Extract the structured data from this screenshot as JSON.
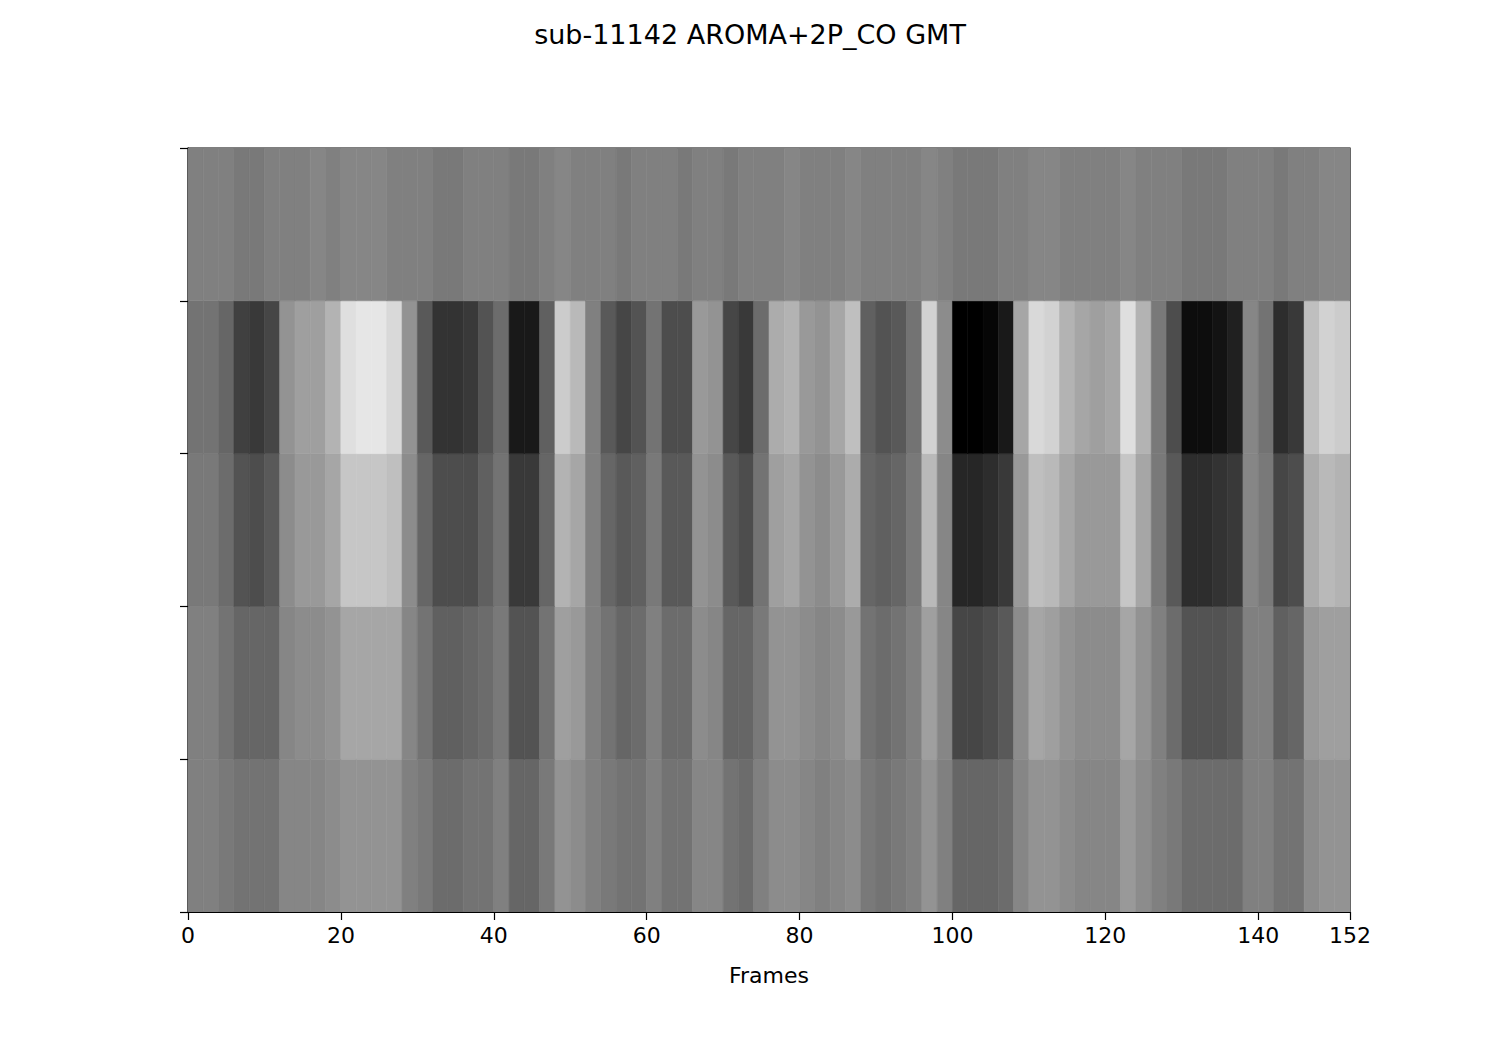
{
  "chart_data": {
    "type": "heatmap",
    "title": "sub-11142 AROMA+2P_CO GMT",
    "xlabel": "Frames",
    "xlim": [
      0,
      152
    ],
    "xticks": [
      0,
      20,
      40,
      60,
      80,
      100,
      120,
      140
    ],
    "ylim": [
      0,
      5
    ],
    "yticks": [
      0,
      1,
      2,
      3,
      4,
      5
    ],
    "tick_labels": "x",
    "grid": false,
    "zlim": [
      -2,
      2
    ],
    "x_edges": [
      0,
      2,
      4,
      6,
      8,
      10,
      12,
      14,
      16,
      18,
      20,
      22,
      24,
      26,
      28,
      30,
      32,
      34,
      36,
      38,
      40,
      42,
      44,
      46,
      48,
      50,
      52,
      54,
      56,
      58,
      60,
      62,
      64,
      66,
      68,
      70,
      72,
      74,
      76,
      78,
      80,
      82,
      84,
      86,
      88,
      90,
      92,
      94,
      96,
      98,
      100,
      102,
      104,
      106,
      108,
      110,
      112,
      114,
      116,
      118,
      120,
      122,
      124,
      126,
      128,
      130,
      132,
      134,
      136,
      138,
      140,
      142,
      144,
      146,
      148,
      150,
      152
    ],
    "y_edges": [
      0,
      1,
      2,
      3,
      4,
      5
    ],
    "z": [
      [
        0.0,
        0.0,
        -0.1,
        -0.2,
        -0.2,
        -0.2,
        0.1,
        0.1,
        0.1,
        0.2,
        0.3,
        0.3,
        0.3,
        0.3,
        0.0,
        -0.1,
        -0.3,
        -0.3,
        -0.2,
        -0.2,
        0.0,
        -0.4,
        -0.4,
        -0.1,
        0.3,
        0.2,
        0.0,
        -0.1,
        -0.2,
        -0.2,
        0.0,
        -0.2,
        -0.2,
        0.1,
        0.1,
        -0.2,
        -0.3,
        0.0,
        0.2,
        0.2,
        0.1,
        0.0,
        0.1,
        0.2,
        -0.1,
        -0.2,
        -0.1,
        0.0,
        0.3,
        0.0,
        -0.4,
        -0.4,
        -0.4,
        -0.3,
        0.1,
        0.3,
        0.3,
        0.2,
        0.1,
        0.1,
        0.1,
        0.4,
        0.2,
        0.0,
        -0.1,
        -0.3,
        -0.3,
        -0.3,
        -0.3,
        0.0,
        0.0,
        -0.2,
        -0.2,
        0.2,
        0.3,
        0.3
      ],
      [
        0.0,
        0.0,
        -0.2,
        -0.4,
        -0.4,
        -0.4,
        0.1,
        0.2,
        0.2,
        0.3,
        0.6,
        0.6,
        0.6,
        0.6,
        0.1,
        -0.2,
        -0.5,
        -0.5,
        -0.4,
        -0.3,
        -0.1,
        -0.7,
        -0.7,
        -0.2,
        0.5,
        0.4,
        0.0,
        -0.2,
        -0.4,
        -0.3,
        0.0,
        -0.3,
        -0.3,
        0.2,
        0.1,
        -0.4,
        -0.4,
        -0.1,
        0.3,
        0.3,
        0.2,
        0.1,
        0.2,
        0.4,
        -0.2,
        -0.3,
        -0.2,
        0.0,
        0.5,
        0.1,
        -0.9,
        -0.9,
        -0.8,
        -0.6,
        0.2,
        0.6,
        0.5,
        0.3,
        0.2,
        0.2,
        0.2,
        0.6,
        0.3,
        0.0,
        -0.3,
        -0.7,
        -0.7,
        -0.7,
        -0.6,
        0.0,
        0.0,
        -0.5,
        -0.4,
        0.4,
        0.5,
        0.5
      ],
      [
        -0.1,
        -0.1,
        -0.3,
        -0.7,
        -0.8,
        -0.6,
        0.2,
        0.4,
        0.4,
        0.6,
        1.1,
        1.1,
        1.1,
        1.0,
        0.2,
        -0.4,
        -0.8,
        -0.8,
        -0.8,
        -0.5,
        -0.2,
        -1.1,
        -1.1,
        -0.4,
        0.8,
        0.6,
        0.0,
        -0.4,
        -0.6,
        -0.5,
        -0.1,
        -0.6,
        -0.6,
        0.3,
        0.2,
        -0.6,
        -0.8,
        -0.2,
        0.5,
        0.6,
        0.3,
        0.2,
        0.4,
        0.7,
        -0.4,
        -0.5,
        -0.4,
        -0.1,
        0.9,
        0.1,
        -1.4,
        -1.4,
        -1.3,
        -1.1,
        0.4,
        1.0,
        0.9,
        0.6,
        0.4,
        0.4,
        0.4,
        1.1,
        0.6,
        -0.1,
        -0.6,
        -1.3,
        -1.3,
        -1.2,
        -1.1,
        0.1,
        -0.1,
        -0.9,
        -0.8,
        0.7,
        0.9,
        0.8
      ],
      [
        -0.2,
        -0.2,
        -0.4,
        -1.0,
        -1.1,
        -0.9,
        0.3,
        0.5,
        0.5,
        0.8,
        1.5,
        1.6,
        1.6,
        1.4,
        0.3,
        -0.6,
        -1.2,
        -1.2,
        -1.1,
        -0.7,
        -0.3,
        -1.6,
        -1.6,
        -0.5,
        1.2,
        0.9,
        0.0,
        -0.6,
        -0.9,
        -0.7,
        -0.2,
        -0.8,
        -0.8,
        0.4,
        0.3,
        -0.9,
        -1.1,
        -0.3,
        0.7,
        0.8,
        0.4,
        0.3,
        0.6,
        1.0,
        -0.5,
        -0.7,
        -0.6,
        -0.2,
        1.3,
        0.2,
        -2.0,
        -2.0,
        -1.9,
        -1.6,
        0.6,
        1.4,
        1.3,
        0.8,
        0.6,
        0.5,
        0.6,
        1.5,
        0.8,
        -0.1,
        -0.8,
        -1.8,
        -1.8,
        -1.7,
        -1.5,
        0.1,
        -0.2,
        -1.3,
        -1.1,
        1.0,
        1.3,
        1.2
      ],
      [
        0.0,
        0.0,
        0.0,
        -0.1,
        -0.1,
        0.0,
        0.0,
        0.0,
        0.1,
        0.0,
        0.1,
        0.1,
        0.1,
        0.0,
        0.0,
        0.0,
        -0.1,
        -0.1,
        0.0,
        0.0,
        0.0,
        -0.1,
        -0.1,
        0.0,
        0.1,
        0.0,
        0.0,
        0.0,
        -0.1,
        0.0,
        0.0,
        0.0,
        -0.1,
        0.0,
        0.0,
        -0.1,
        0.0,
        0.0,
        0.0,
        0.1,
        0.0,
        0.0,
        0.0,
        0.1,
        0.0,
        0.0,
        0.0,
        0.0,
        0.1,
        0.0,
        -0.1,
        -0.1,
        -0.1,
        0.0,
        0.0,
        0.1,
        0.1,
        0.0,
        0.0,
        0.0,
        0.0,
        0.1,
        0.0,
        0.0,
        0.0,
        -0.1,
        -0.1,
        -0.1,
        0.0,
        0.0,
        0.0,
        -0.1,
        0.0,
        0.0,
        0.1,
        0.1
      ]
    ]
  }
}
